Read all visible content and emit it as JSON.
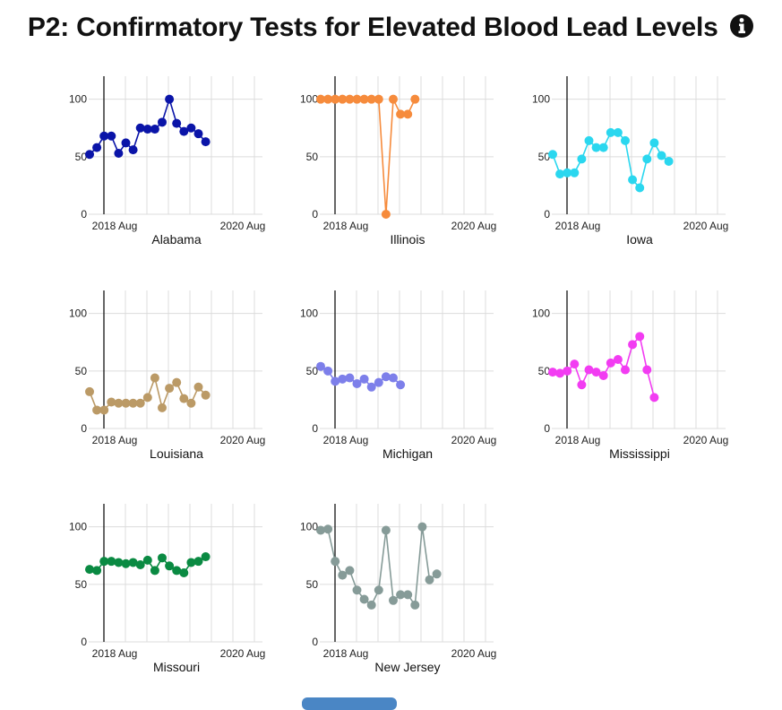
{
  "title": "P2: Confirmatory Tests for Elevated Blood Lead Levels",
  "info_icon": "info-circle-icon",
  "colors": {
    "grid": "#dcdcdc",
    "axis": "#000000",
    "button": "#4a86c5"
  },
  "chart_data": [
    {
      "type": "line",
      "state": "Alabama",
      "color": "#0a14a8",
      "x_ticks": [
        "2018 Aug",
        "2020 Aug"
      ],
      "y_ticks": [
        0,
        50,
        100
      ],
      "ylim": [
        0,
        120
      ],
      "grid": true,
      "values": [
        52,
        58,
        68,
        68,
        53,
        62,
        56,
        75,
        74,
        74,
        80,
        100,
        79,
        72,
        75,
        70,
        63
      ]
    },
    {
      "type": "line",
      "state": "Illinois",
      "color": "#f68b3c",
      "x_ticks": [
        "2018 Aug",
        "2020 Aug"
      ],
      "y_ticks": [
        0,
        50,
        100
      ],
      "ylim": [
        0,
        120
      ],
      "grid": true,
      "values": [
        100,
        100,
        100,
        100,
        100,
        100,
        100,
        100,
        100,
        0,
        100,
        87,
        87,
        100
      ]
    },
    {
      "type": "line",
      "state": "Iowa",
      "color": "#2ad7ef",
      "x_ticks": [
        "2018 Aug",
        "2020 Aug"
      ],
      "y_ticks": [
        0,
        50,
        100
      ],
      "ylim": [
        0,
        120
      ],
      "grid": true,
      "values": [
        52,
        35,
        36,
        36,
        48,
        64,
        58,
        58,
        71,
        71,
        64,
        30,
        23,
        48,
        62,
        51,
        46
      ]
    },
    {
      "type": "line",
      "state": "Louisiana",
      "color": "#bb9a66",
      "x_ticks": [
        "2018 Aug",
        "2020 Aug"
      ],
      "y_ticks": [
        0,
        50,
        100
      ],
      "ylim": [
        0,
        120
      ],
      "grid": true,
      "values": [
        32,
        16,
        16,
        23,
        22,
        22,
        22,
        22,
        27,
        44,
        18,
        35,
        40,
        26,
        22,
        36,
        29
      ]
    },
    {
      "type": "line",
      "state": "Michigan",
      "color": "#7d7fea",
      "x_ticks": [
        "2018 Aug",
        "2020 Aug"
      ],
      "y_ticks": [
        0,
        50,
        100
      ],
      "ylim": [
        0,
        120
      ],
      "grid": true,
      "values": [
        54,
        50,
        41,
        43,
        44,
        39,
        43,
        36,
        40,
        45,
        44,
        38
      ]
    },
    {
      "type": "line",
      "state": "Mississippi",
      "color": "#f23cf2",
      "x_ticks": [
        "2018 Aug",
        "2020 Aug"
      ],
      "y_ticks": [
        0,
        50,
        100
      ],
      "ylim": [
        0,
        120
      ],
      "grid": true,
      "values": [
        49,
        48,
        50,
        56,
        38,
        51,
        49,
        46,
        57,
        60,
        51,
        73,
        80,
        51,
        27
      ]
    },
    {
      "type": "line",
      "state": "Missouri",
      "color": "#0a8a42",
      "x_ticks": [
        "2018 Aug",
        "2020 Aug"
      ],
      "y_ticks": [
        0,
        50,
        100
      ],
      "ylim": [
        0,
        120
      ],
      "grid": true,
      "values": [
        63,
        62,
        70,
        70,
        69,
        68,
        69,
        67,
        71,
        62,
        73,
        66,
        62,
        60,
        69,
        70,
        74
      ]
    },
    {
      "type": "line",
      "state": "New Jersey",
      "color": "#869b98",
      "x_ticks": [
        "2018 Aug",
        "2020 Aug"
      ],
      "y_ticks": [
        0,
        50,
        100
      ],
      "ylim": [
        0,
        120
      ],
      "grid": true,
      "values": [
        97,
        98,
        70,
        58,
        62,
        45,
        37,
        32,
        45,
        97,
        36,
        41,
        41,
        32,
        100,
        54,
        59
      ]
    }
  ]
}
